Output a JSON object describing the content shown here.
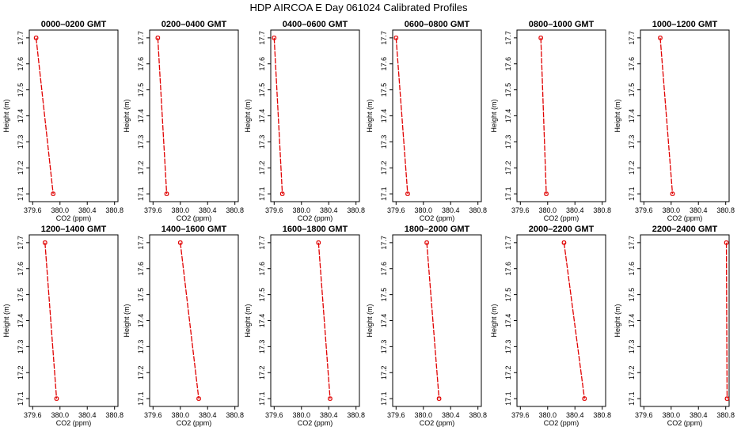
{
  "figure": {
    "title": "HDP  AIRCOA E  Day 061024  Calibrated Profiles"
  },
  "chart_data": [
    {
      "type": "line",
      "title": "0000–0200 GMT",
      "xlabel": "CO2 (ppm)",
      "ylabel": "Height (m)",
      "xlim": [
        379.55,
        380.85
      ],
      "ylim": [
        17.07,
        17.73
      ],
      "xticks": [
        "379.6",
        "380.0",
        "380.4",
        "380.8"
      ],
      "yticks": [
        "17.1",
        "17.2",
        "17.3",
        "17.4",
        "17.5",
        "17.6",
        "17.7"
      ],
      "x": [
        379.65,
        379.9
      ],
      "y": [
        17.7,
        17.1
      ],
      "color": "#e00000"
    },
    {
      "type": "line",
      "title": "0200–0400 GMT",
      "xlabel": "CO2 (ppm)",
      "ylabel": "Height (m)",
      "xlim": [
        379.55,
        380.85
      ],
      "ylim": [
        17.07,
        17.73
      ],
      "xticks": [
        "379.6",
        "380.0",
        "380.4",
        "380.8"
      ],
      "yticks": [
        "17.1",
        "17.2",
        "17.3",
        "17.4",
        "17.5",
        "17.6",
        "17.7"
      ],
      "x": [
        379.67,
        379.8
      ],
      "y": [
        17.7,
        17.1
      ],
      "color": "#e00000"
    },
    {
      "type": "line",
      "title": "0400–0600 GMT",
      "xlabel": "CO2 (ppm)",
      "ylabel": "Height (m)",
      "xlim": [
        379.55,
        380.85
      ],
      "ylim": [
        17.07,
        17.73
      ],
      "xticks": [
        "379.6",
        "380.0",
        "380.4",
        "380.8"
      ],
      "yticks": [
        "17.1",
        "17.2",
        "17.3",
        "17.4",
        "17.5",
        "17.6",
        "17.7"
      ],
      "x": [
        379.6,
        379.72
      ],
      "y": [
        17.7,
        17.1
      ],
      "color": "#e00000"
    },
    {
      "type": "line",
      "title": "0600–0800 GMT",
      "xlabel": "CO2 (ppm)",
      "ylabel": "Height (m)",
      "xlim": [
        379.55,
        380.85
      ],
      "ylim": [
        17.07,
        17.73
      ],
      "xticks": [
        "379.6",
        "380.0",
        "380.4",
        "380.8"
      ],
      "yticks": [
        "17.1",
        "17.2",
        "17.3",
        "17.4",
        "17.5",
        "17.6",
        "17.7"
      ],
      "x": [
        379.6,
        379.77
      ],
      "y": [
        17.7,
        17.1
      ],
      "color": "#e00000"
    },
    {
      "type": "line",
      "title": "0800–1000 GMT",
      "xlabel": "CO2 (ppm)",
      "ylabel": "Height (m)",
      "xlim": [
        379.55,
        380.85
      ],
      "ylim": [
        17.07,
        17.73
      ],
      "xticks": [
        "379.6",
        "380.0",
        "380.4",
        "380.8"
      ],
      "yticks": [
        "17.1",
        "17.2",
        "17.3",
        "17.4",
        "17.5",
        "17.6",
        "17.7"
      ],
      "x": [
        379.9,
        379.98
      ],
      "y": [
        17.7,
        17.1
      ],
      "color": "#e00000"
    },
    {
      "type": "line",
      "title": "1000–1200 GMT",
      "xlabel": "CO2 (ppm)",
      "ylabel": "Height (m)",
      "xlim": [
        379.55,
        380.85
      ],
      "ylim": [
        17.07,
        17.73
      ],
      "xticks": [
        "379.6",
        "380.0",
        "380.4",
        "380.8"
      ],
      "yticks": [
        "17.1",
        "17.2",
        "17.3",
        "17.4",
        "17.5",
        "17.6",
        "17.7"
      ],
      "x": [
        379.84,
        380.02
      ],
      "y": [
        17.7,
        17.1
      ],
      "color": "#e00000"
    },
    {
      "type": "line",
      "title": "1200–1400 GMT",
      "xlabel": "CO2 (ppm)",
      "ylabel": "Height (m)",
      "xlim": [
        379.55,
        380.85
      ],
      "ylim": [
        17.07,
        17.73
      ],
      "xticks": [
        "379.6",
        "380.0",
        "380.4",
        "380.8"
      ],
      "yticks": [
        "17.1",
        "17.2",
        "17.3",
        "17.4",
        "17.5",
        "17.6",
        "17.7"
      ],
      "x": [
        379.78,
        379.95
      ],
      "y": [
        17.7,
        17.1
      ],
      "color": "#e00000"
    },
    {
      "type": "line",
      "title": "1400–1600 GMT",
      "xlabel": "CO2 (ppm)",
      "ylabel": "Height (m)",
      "xlim": [
        379.55,
        380.85
      ],
      "ylim": [
        17.07,
        17.73
      ],
      "xticks": [
        "379.6",
        "380.0",
        "380.4",
        "380.8"
      ],
      "yticks": [
        "17.1",
        "17.2",
        "17.3",
        "17.4",
        "17.5",
        "17.6",
        "17.7"
      ],
      "x": [
        380.0,
        380.27
      ],
      "y": [
        17.7,
        17.1
      ],
      "color": "#e00000"
    },
    {
      "type": "line",
      "title": "1600–1800 GMT",
      "xlabel": "CO2 (ppm)",
      "ylabel": "Height (m)",
      "xlim": [
        379.55,
        380.85
      ],
      "ylim": [
        17.07,
        17.73
      ],
      "xticks": [
        "379.6",
        "380.0",
        "380.4",
        "380.8"
      ],
      "yticks": [
        "17.1",
        "17.2",
        "17.3",
        "17.4",
        "17.5",
        "17.6",
        "17.7"
      ],
      "x": [
        380.25,
        380.42
      ],
      "y": [
        17.7,
        17.1
      ],
      "color": "#e00000"
    },
    {
      "type": "line",
      "title": "1800–2000 GMT",
      "xlabel": "CO2 (ppm)",
      "ylabel": "Height (m)",
      "xlim": [
        379.55,
        380.85
      ],
      "ylim": [
        17.07,
        17.73
      ],
      "xticks": [
        "379.6",
        "380.0",
        "380.4",
        "380.8"
      ],
      "yticks": [
        "17.1",
        "17.2",
        "17.3",
        "17.4",
        "17.5",
        "17.6",
        "17.7"
      ],
      "x": [
        380.05,
        380.23
      ],
      "y": [
        17.7,
        17.1
      ],
      "color": "#e00000"
    },
    {
      "type": "line",
      "title": "2000–2200 GMT",
      "xlabel": "CO2 (ppm)",
      "ylabel": "Height (m)",
      "xlim": [
        379.55,
        380.85
      ],
      "ylim": [
        17.07,
        17.73
      ],
      "xticks": [
        "379.6",
        "380.0",
        "380.4",
        "380.8"
      ],
      "yticks": [
        "17.1",
        "17.2",
        "17.3",
        "17.4",
        "17.5",
        "17.6",
        "17.7"
      ],
      "x": [
        380.24,
        380.54
      ],
      "y": [
        17.7,
        17.1
      ],
      "color": "#e00000"
    },
    {
      "type": "line",
      "title": "2200–2400 GMT",
      "xlabel": "CO2 (ppm)",
      "ylabel": "Height (m)",
      "xlim": [
        379.55,
        380.85
      ],
      "ylim": [
        17.07,
        17.73
      ],
      "xticks": [
        "379.6",
        "380.0",
        "380.4",
        "380.8"
      ],
      "yticks": [
        "17.1",
        "17.2",
        "17.3",
        "17.4",
        "17.5",
        "17.6",
        "17.7"
      ],
      "x": [
        380.81,
        380.82
      ],
      "y": [
        17.7,
        17.1
      ],
      "color": "#e00000"
    }
  ]
}
